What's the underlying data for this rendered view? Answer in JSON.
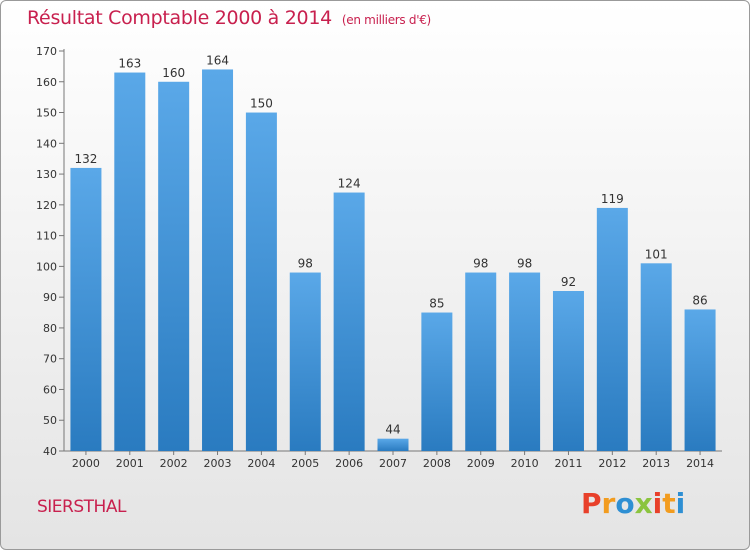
{
  "header": {
    "title": "Résultat Comptable 2000 à 2014",
    "subtitle": "(en milliers d'€)"
  },
  "footer": {
    "commune": "SIERSTHAL"
  },
  "logo": {
    "text": "Proxiti",
    "colors": [
      "#e8402a",
      "#f29c1f",
      "#2e8fd3",
      "#8bc43f",
      "#e8402a",
      "#f29c1f",
      "#2e8fd3"
    ]
  },
  "colors": {
    "title": "#c8204e",
    "bar_top": "#5aa8e8",
    "bar_bottom": "#2a7bc0"
  },
  "chart_data": {
    "type": "bar",
    "title": "Résultat Comptable 2000 à 2014",
    "categories": [
      "2000",
      "2001",
      "2002",
      "2003",
      "2004",
      "2005",
      "2006",
      "2007",
      "2008",
      "2009",
      "2010",
      "2011",
      "2012",
      "2013",
      "2014"
    ],
    "values": [
      132,
      163,
      160,
      164,
      150,
      98,
      124,
      44,
      85,
      98,
      98,
      92,
      119,
      101,
      86
    ],
    "ylim": [
      40,
      170
    ],
    "yticks": [
      40,
      50,
      60,
      70,
      80,
      90,
      100,
      110,
      120,
      130,
      140,
      150,
      160,
      170
    ],
    "grid": false,
    "legend": "none"
  }
}
